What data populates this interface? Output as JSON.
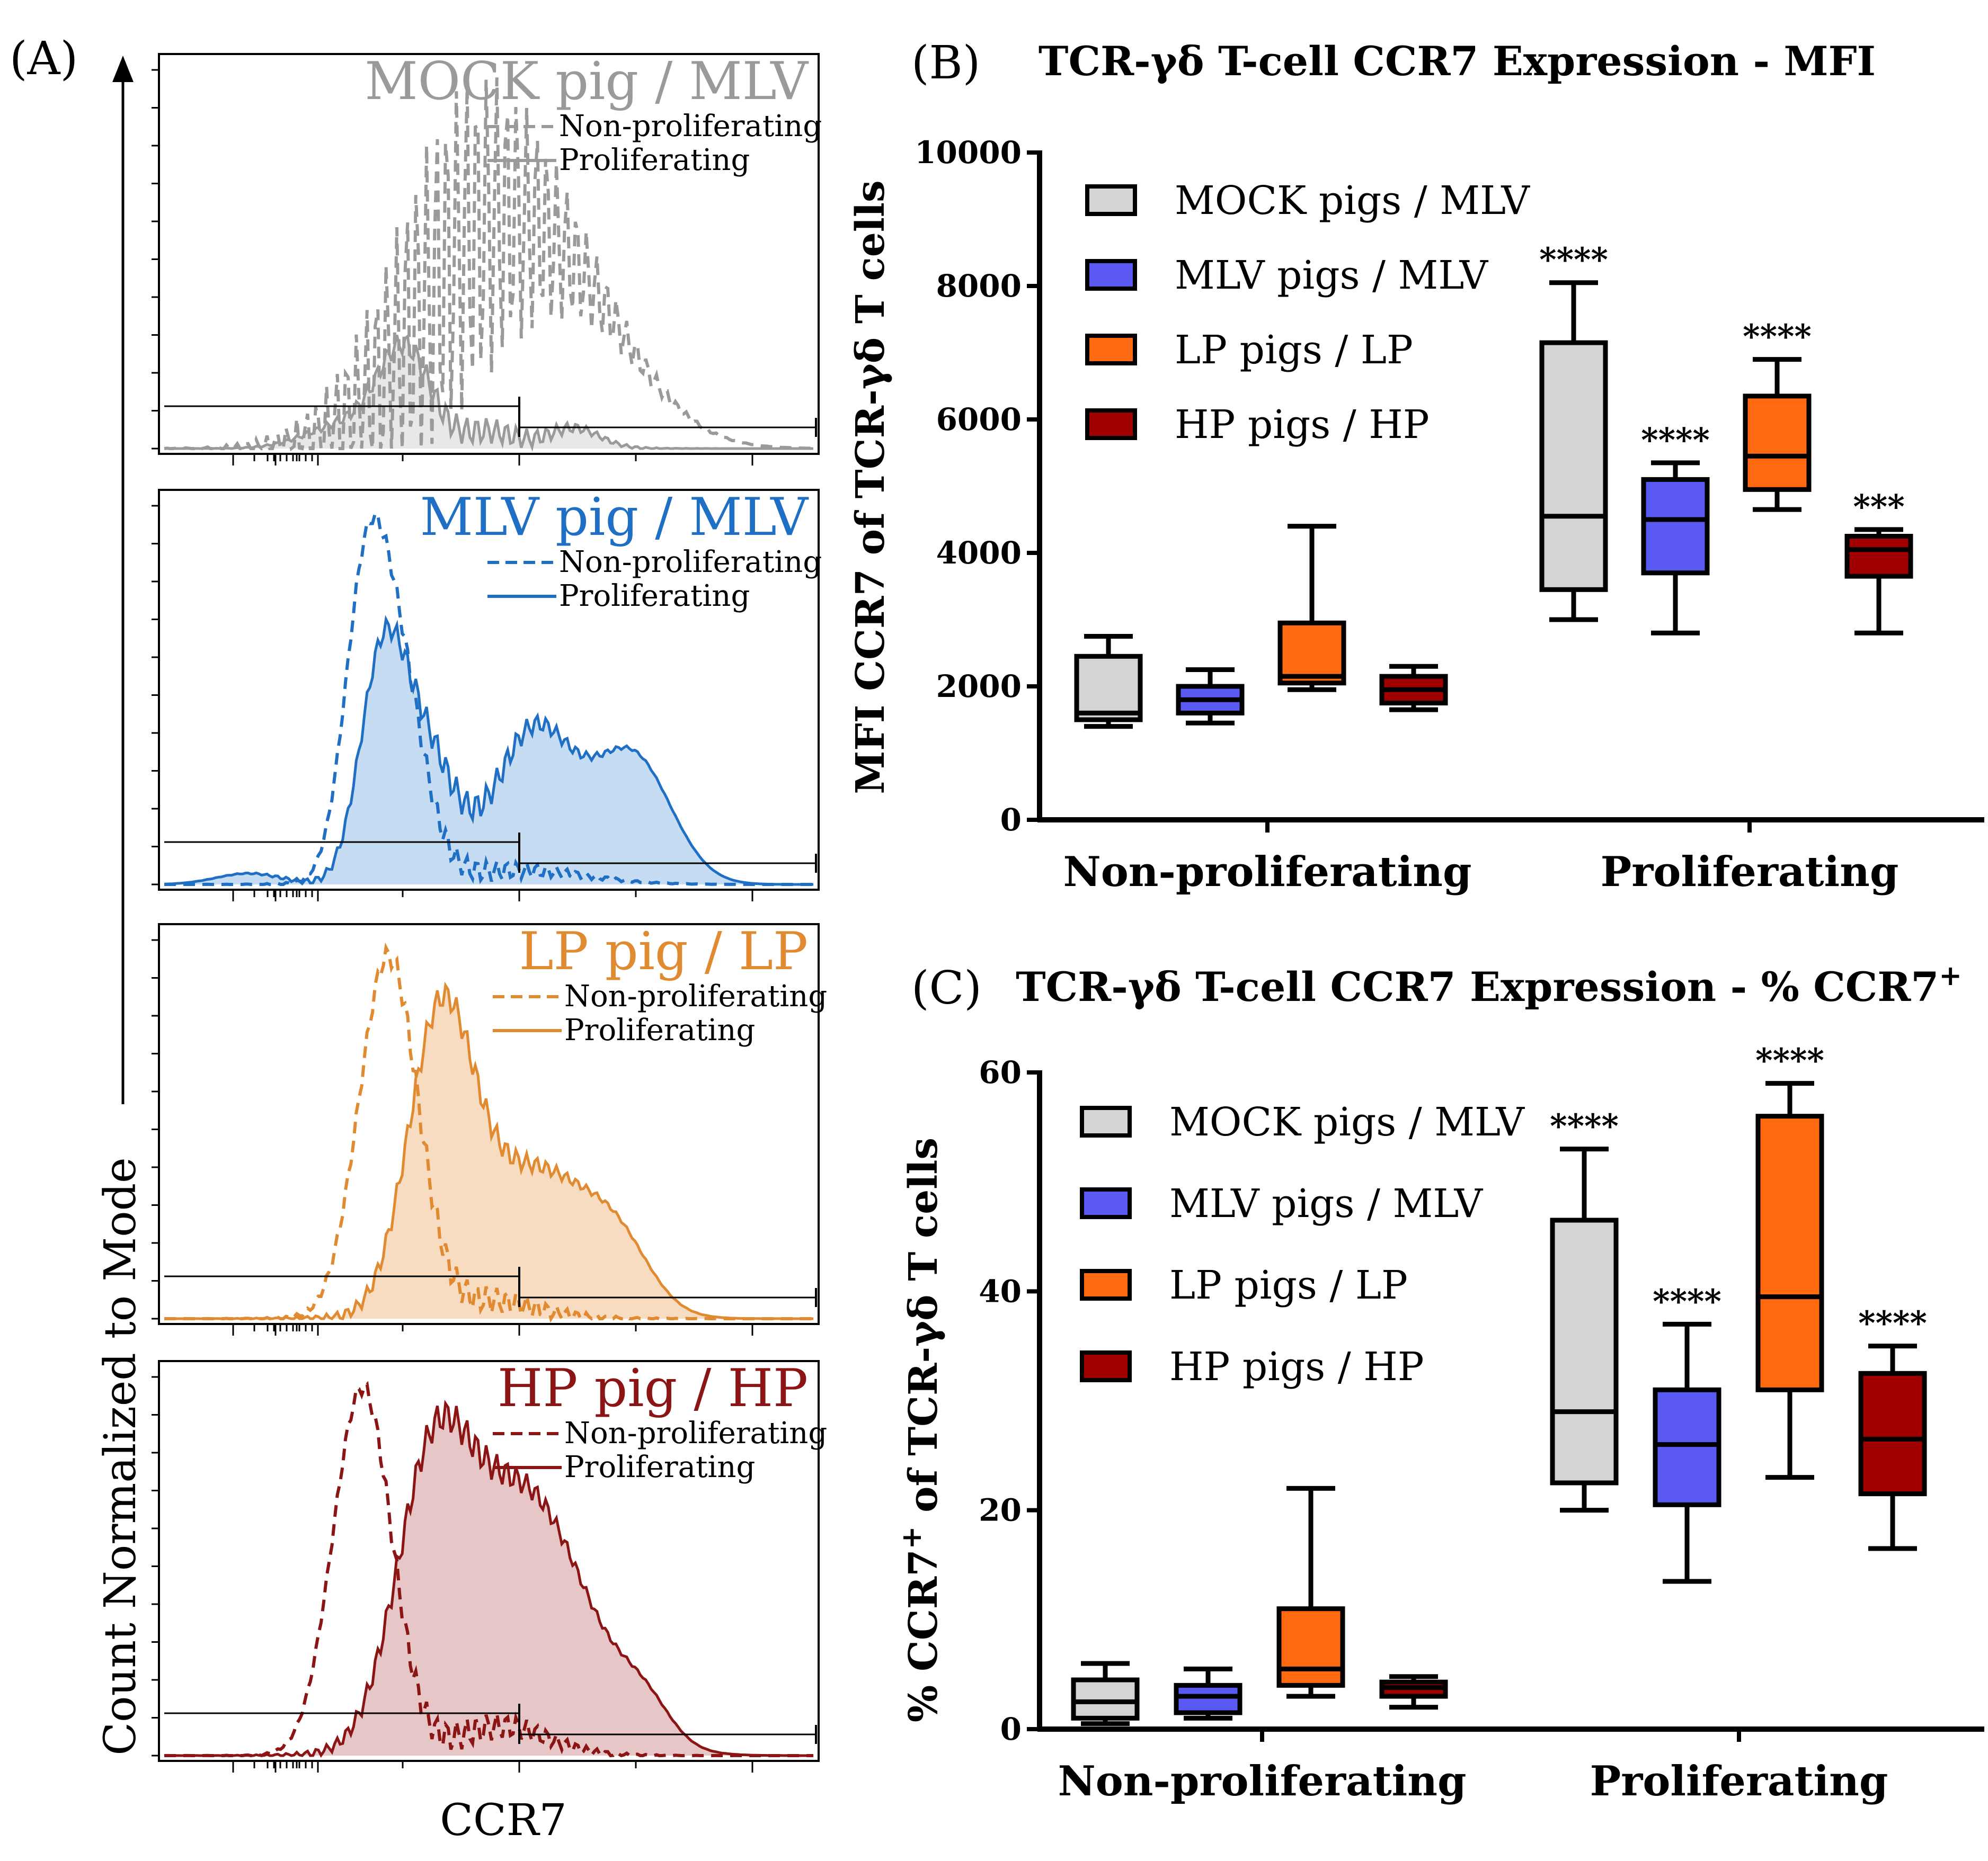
{
  "panel_a": {
    "letter": "(A)",
    "y_label": "Count Normalized to Mode",
    "x_label": "CCR7",
    "legend_nonprolif": "Non-proliferating",
    "legend_prolif": "Proliferating",
    "panels": [
      {
        "title": "MOCK pig / MLV",
        "color": "#9a9a9a",
        "fill": "#e8e8e8"
      },
      {
        "title": "MLV pig / MLV",
        "color": "#1f6fc4",
        "fill": "#c6dcf2"
      },
      {
        "title": "LP pig / LP",
        "color": "#e08a32",
        "fill": "#f7dcc2"
      },
      {
        "title": "HP pig / HP",
        "color": "#8b1414",
        "fill": "#e6c6c6"
      }
    ]
  },
  "colors": {
    "mock": "#d4d4d4",
    "mlv": "#5a5af2",
    "lp": "#ff6a10",
    "hp": "#a00000"
  },
  "chart_data": [
    {
      "type": "box",
      "panel": "(B)",
      "title": "TCR-γδ  T-cell CCR7 Expression - MFI",
      "ylabel": "MFI CCR7 of TCR-γδ  T cells",
      "ylim": [
        0,
        10000
      ],
      "yticks": [
        "0",
        "2000",
        "4000",
        "6000",
        "8000",
        "10000"
      ],
      "categories": [
        "Non-proliferating",
        "Proliferating"
      ],
      "series": [
        {
          "name": "MOCK pigs / MLV",
          "color_key": "mock",
          "boxes": [
            {
              "min": 1400,
              "q1": 1500,
              "median": 1600,
              "q3": 2450,
              "max": 2750,
              "stars": ""
            },
            {
              "min": 3000,
              "q1": 3450,
              "median": 4550,
              "q3": 7150,
              "max": 8050,
              "stars": "****"
            }
          ]
        },
        {
          "name": "MLV pigs / MLV",
          "color_key": "mlv",
          "boxes": [
            {
              "min": 1450,
              "q1": 1600,
              "median": 1800,
              "q3": 2000,
              "max": 2250,
              "stars": ""
            },
            {
              "min": 2800,
              "q1": 3700,
              "median": 4500,
              "q3": 5100,
              "max": 5350,
              "stars": "****"
            }
          ]
        },
        {
          "name": "LP pigs / LP",
          "color_key": "lp",
          "boxes": [
            {
              "min": 1950,
              "q1": 2050,
              "median": 2150,
              "q3": 2950,
              "max": 4400,
              "stars": ""
            },
            {
              "min": 4650,
              "q1": 4950,
              "median": 5450,
              "q3": 6350,
              "max": 6900,
              "stars": "****"
            }
          ]
        },
        {
          "name": "HP pigs / HP",
          "color_key": "hp",
          "boxes": [
            {
              "min": 1650,
              "q1": 1750,
              "median": 1950,
              "q3": 2150,
              "max": 2300,
              "stars": ""
            },
            {
              "min": 2800,
              "q1": 3650,
              "median": 4050,
              "q3": 4250,
              "max": 4350,
              "stars": "***"
            }
          ]
        }
      ]
    },
    {
      "type": "box",
      "panel": "(C)",
      "title": "TCR-γδ  T-cell CCR7 Expression - % CCR7",
      "title_sup": "+",
      "ylabel_pre": "% CCR7",
      "ylabel_sup": "+",
      "ylabel_post": " of TCR-γδ  T cells",
      "ylim": [
        0,
        60
      ],
      "yticks": [
        "0",
        "20",
        "40",
        "60"
      ],
      "categories": [
        "Non-proliferating",
        "Proliferating"
      ],
      "series": [
        {
          "name": "MOCK pigs / MLV",
          "color_key": "mock",
          "boxes": [
            {
              "min": 0.5,
              "q1": 1.0,
              "median": 2.5,
              "q3": 4.5,
              "max": 6.0,
              "stars": ""
            },
            {
              "min": 20,
              "q1": 22.5,
              "median": 29,
              "q3": 46.5,
              "max": 53,
              "stars": "****"
            }
          ]
        },
        {
          "name": "MLV pigs / MLV",
          "color_key": "mlv",
          "boxes": [
            {
              "min": 1.0,
              "q1": 1.5,
              "median": 3.0,
              "q3": 4.0,
              "max": 5.5,
              "stars": ""
            },
            {
              "min": 13.5,
              "q1": 20.5,
              "median": 26,
              "q3": 31,
              "max": 37,
              "stars": "****"
            }
          ]
        },
        {
          "name": "LP pigs / LP",
          "color_key": "lp",
          "boxes": [
            {
              "min": 3.0,
              "q1": 4.0,
              "median": 5.5,
              "q3": 11,
              "max": 22,
              "stars": ""
            },
            {
              "min": 23,
              "q1": 31,
              "median": 39.5,
              "q3": 56,
              "max": 59,
              "stars": "****"
            }
          ]
        },
        {
          "name": "HP pigs / HP",
          "color_key": "hp",
          "boxes": [
            {
              "min": 2.0,
              "q1": 3.0,
              "median": 3.8,
              "q3": 4.3,
              "max": 4.8,
              "stars": ""
            },
            {
              "min": 16.5,
              "q1": 21.5,
              "median": 26.5,
              "q3": 32.5,
              "max": 35,
              "stars": "****"
            }
          ]
        }
      ]
    }
  ]
}
